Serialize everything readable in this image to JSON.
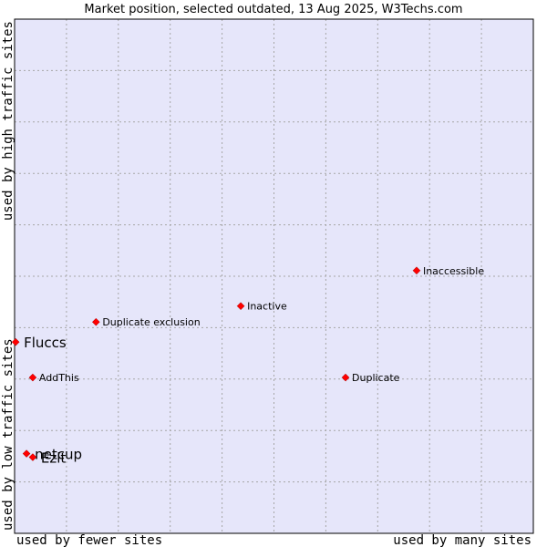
{
  "chart_data": {
    "type": "scatter",
    "title": "Market position, selected outdated, 13 Aug 2025, W3Techs.com",
    "xlabel_left": "used by fewer sites",
    "xlabel_right": "used by many sites",
    "ylabel_bottom": "used by low traffic sites",
    "ylabel_top": "used by high traffic sites",
    "xlim": [
      0,
      100
    ],
    "ylim": [
      0,
      100
    ],
    "grid": true,
    "plot_background": "#e6e6fa",
    "marker_color": "#ff0000",
    "points": [
      {
        "label": "Inaccessible",
        "x": 77.5,
        "y": 51.1,
        "emphasis": false
      },
      {
        "label": "Inactive",
        "x": 43.6,
        "y": 44.2,
        "emphasis": false
      },
      {
        "label": "Duplicate exclusion",
        "x": 15.7,
        "y": 41.1,
        "emphasis": false
      },
      {
        "label": "Fluccs",
        "x": 0.2,
        "y": 37.2,
        "emphasis": true
      },
      {
        "label": "AddThis",
        "x": 3.5,
        "y": 30.3,
        "emphasis": false
      },
      {
        "label": "Duplicate",
        "x": 63.8,
        "y": 30.3,
        "emphasis": false
      },
      {
        "label": "netcup",
        "x": 2.3,
        "y": 15.5,
        "emphasis": true
      },
      {
        "label": "Ezlt",
        "x": 3.5,
        "y": 14.8,
        "emphasis": true
      }
    ]
  }
}
